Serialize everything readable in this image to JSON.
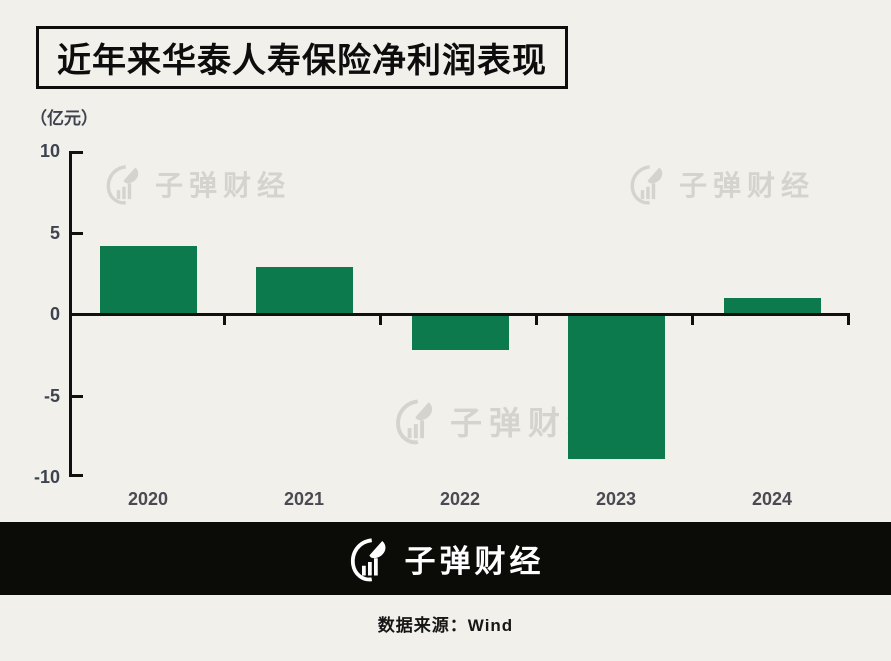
{
  "page": {
    "title": "近年来华泰人寿保险净利润表现",
    "unit_label": "（亿元）",
    "watermark_text": "子弹财经",
    "brand": "子弹财经",
    "source": "数据来源：Wind"
  },
  "colors": {
    "bg": "#f1f0eb",
    "bar": "#0d7a4e",
    "axis": "#101010",
    "tick_label": "#3e4350",
    "x_label": "#4a4a52",
    "watermark": "#d5d3cd",
    "footer_bg": "#0b0b08",
    "footer_text": "#ffffff"
  },
  "chart_data": {
    "type": "bar",
    "title": "近年来华泰人寿保险净利润表现",
    "unit": "亿元",
    "categories": [
      "2020",
      "2021",
      "2022",
      "2023",
      "2024"
    ],
    "values": [
      4.2,
      2.9,
      -2.2,
      -8.9,
      1.0
    ],
    "ylim": [
      -10,
      10
    ],
    "yticks": [
      10,
      5,
      0,
      -5,
      -10
    ],
    "xlabel": "",
    "ylabel": "亿元",
    "grid": false,
    "legend": false,
    "bar_color": "#0d7a4e"
  }
}
